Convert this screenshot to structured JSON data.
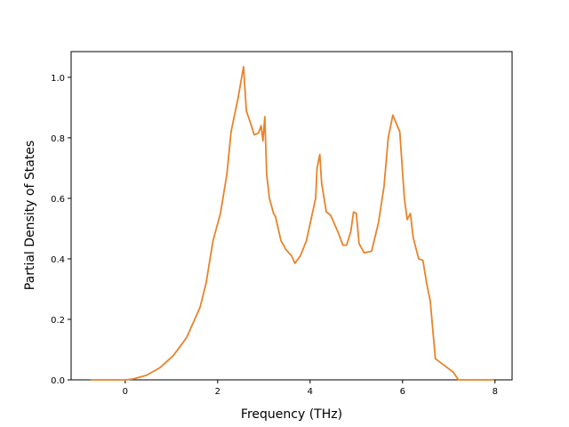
{
  "chart_data": {
    "type": "line",
    "xlabel": "Frequency (THz)",
    "ylabel": "Partial Density of States",
    "color": "#e8832a",
    "x": [
      -0.75,
      0,
      0.17,
      0.46,
      0.75,
      1.04,
      1.33,
      1.62,
      1.75,
      1.9,
      2.06,
      2.2,
      2.29,
      2.44,
      2.56,
      2.62,
      2.73,
      2.79,
      2.88,
      2.94,
      2.98,
      3.02,
      3.06,
      3.12,
      3.21,
      3.25,
      3.37,
      3.48,
      3.6,
      3.67,
      3.79,
      3.92,
      4.02,
      4.12,
      4.15,
      4.21,
      4.25,
      4.35,
      4.44,
      4.6,
      4.71,
      4.79,
      4.88,
      4.94,
      5.0,
      5.06,
      5.17,
      5.33,
      5.48,
      5.6,
      5.69,
      5.79,
      5.94,
      6.04,
      6.1,
      6.17,
      6.23,
      6.35,
      6.44,
      6.52,
      6.6,
      6.71,
      7.1,
      7.21,
      7.98
    ],
    "values": [
      0,
      0,
      0.003,
      0.015,
      0.04,
      0.08,
      0.14,
      0.24,
      0.32,
      0.46,
      0.55,
      0.68,
      0.82,
      0.93,
      1.035,
      0.89,
      0.84,
      0.81,
      0.815,
      0.84,
      0.79,
      0.87,
      0.68,
      0.6,
      0.55,
      0.54,
      0.46,
      0.43,
      0.41,
      0.385,
      0.41,
      0.46,
      0.53,
      0.6,
      0.7,
      0.745,
      0.65,
      0.555,
      0.545,
      0.49,
      0.445,
      0.445,
      0.49,
      0.555,
      0.55,
      0.45,
      0.42,
      0.425,
      0.52,
      0.64,
      0.8,
      0.875,
      0.82,
      0.6,
      0.53,
      0.55,
      0.47,
      0.4,
      0.395,
      0.32,
      0.26,
      0.07,
      0.025,
      0,
      0
    ],
    "xlim": [
      -1.17,
      8.37
    ],
    "xticks": [
      0,
      2,
      4,
      6,
      8
    ],
    "ylim": [
      0,
      1.085
    ],
    "yticks": [
      {
        "value": 0,
        "label": "0.0"
      },
      0.2,
      0.4,
      0.6,
      0.8,
      {
        "value": 1,
        "label": "1.0"
      }
    ],
    "grid": false
  }
}
